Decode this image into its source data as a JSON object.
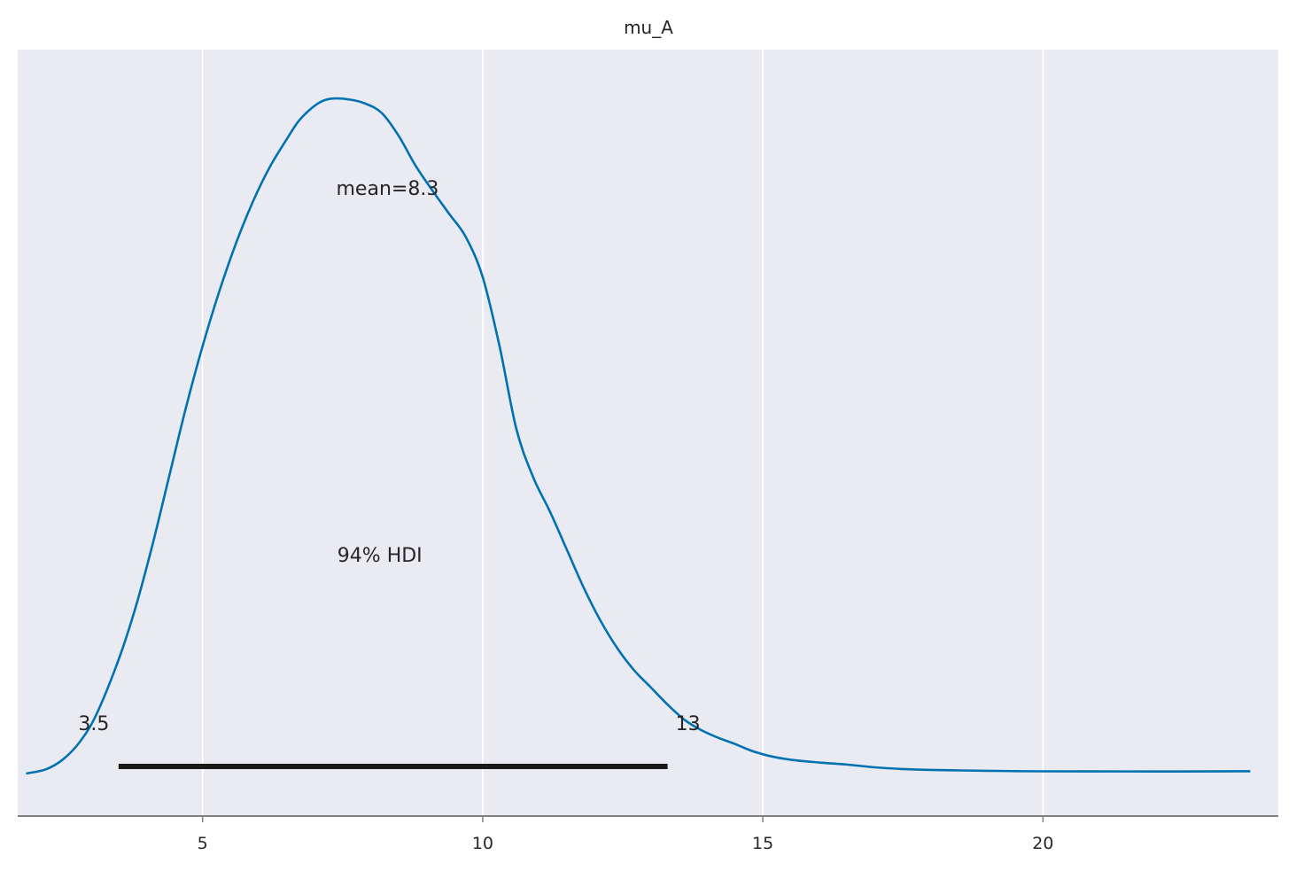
{
  "chart_data": {
    "type": "line",
    "title": "mu_A",
    "xlabel": "",
    "ylabel": "",
    "xlim": [
      1.7,
      24.2
    ],
    "ylim": [
      0,
      1
    ],
    "x_ticks": [
      5,
      10,
      15,
      20
    ],
    "x_tick_labels": [
      "5",
      "10",
      "15",
      "20"
    ],
    "grid": "vertical",
    "y_axis_visible": false,
    "colors": {
      "background": "#eaeaf2",
      "grid": "#ffffff",
      "curve": "#0072b2",
      "hdi_bar": "#1a1a1a",
      "axis": "#808080",
      "text": "#262626"
    },
    "series": [
      {
        "x": [
          1.85,
          2.2,
          2.5,
          2.8,
          3.1,
          3.5,
          3.8,
          4.1,
          4.4,
          4.7,
          5.0,
          5.3,
          5.6,
          5.9,
          6.2,
          6.5,
          6.7,
          6.9,
          7.1,
          7.3,
          7.6,
          7.9,
          8.2,
          8.5,
          8.8,
          9.1,
          9.4,
          9.7,
          10.0,
          10.3,
          10.6,
          10.9,
          11.2,
          11.5,
          11.8,
          12.1,
          12.4,
          12.7,
          13.0,
          13.3,
          13.6,
          13.9,
          14.2,
          14.5,
          14.8,
          15.2,
          15.6,
          16.0,
          16.5,
          17.0,
          17.5,
          18.0,
          18.5,
          19.0,
          19.5,
          20.0,
          21.0,
          22.0,
          23.0,
          23.7
        ],
        "y": [
          0.0,
          0.006,
          0.02,
          0.045,
          0.085,
          0.165,
          0.24,
          0.33,
          0.43,
          0.53,
          0.62,
          0.7,
          0.77,
          0.83,
          0.88,
          0.92,
          0.945,
          0.962,
          0.974,
          0.979,
          0.978,
          0.972,
          0.958,
          0.925,
          0.882,
          0.846,
          0.812,
          0.778,
          0.72,
          0.62,
          0.5,
          0.43,
          0.38,
          0.325,
          0.27,
          0.222,
          0.182,
          0.15,
          0.125,
          0.1,
          0.078,
          0.063,
          0.052,
          0.043,
          0.033,
          0.024,
          0.019,
          0.016,
          0.013,
          0.009,
          0.0065,
          0.0052,
          0.0045,
          0.004,
          0.0035,
          0.0032,
          0.0031,
          0.003,
          0.0031,
          0.0033
        ]
      }
    ],
    "annotations": {
      "mean_label": "mean=8.3",
      "mean_value": 8.3,
      "hdi_label": "94% HDI",
      "hdi_low_label": "3.5",
      "hdi_high_label": "13",
      "hdi_low": 3.5,
      "hdi_high": 13.3
    }
  }
}
